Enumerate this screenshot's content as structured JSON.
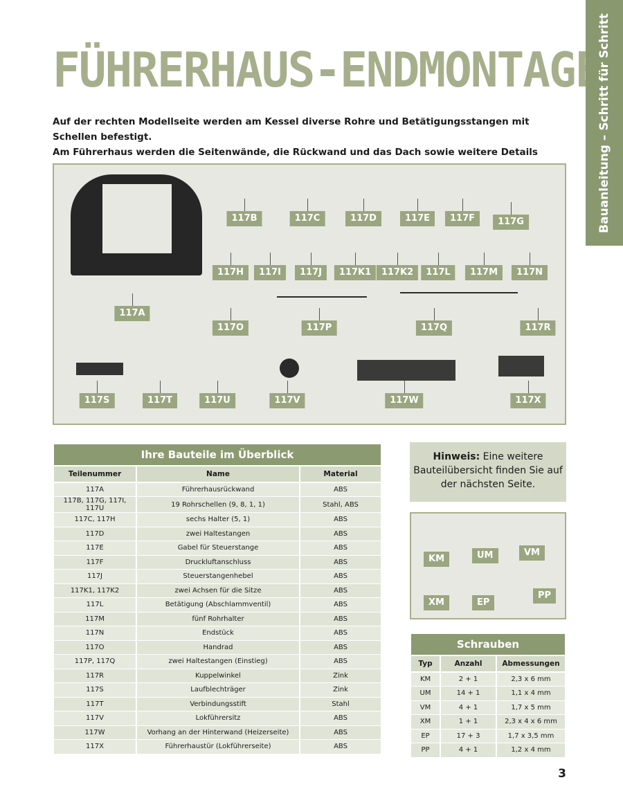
{
  "title": "FÜHRERHAUS-ENDMONTAGE",
  "side_tab": "Bauanleitung – Schritt für Schritt",
  "intro": [
    "Auf der rechten Modellseite werden am Kessel diverse Rohre und Betätigungsstangen mit Schellen befestigt.",
    "Am Führerhaus werden die Seitenwände, die Rückwand und das Dach sowie weitere Details angebracht."
  ],
  "part_labels": [
    "117A",
    "117B",
    "117C",
    "117D",
    "117E",
    "117F",
    "117G",
    "117H",
    "117I",
    "117J",
    "117K1",
    "117K2",
    "117L",
    "117M",
    "117N",
    "117O",
    "117P",
    "117Q",
    "117R",
    "117S",
    "117T",
    "117U",
    "117V",
    "117W",
    "117X"
  ],
  "parts_table": {
    "caption": "Ihre Bauteile im Überblick",
    "headers": [
      "Teilenummer",
      "Name",
      "Material"
    ],
    "rows": [
      [
        "117A",
        "Führerhausrückwand",
        "ABS"
      ],
      [
        "117B, 117G, 117I, 117U",
        "19 Rohrschellen (9, 8, 1, 1)",
        "Stahl, ABS"
      ],
      [
        "117C, 117H",
        "sechs Halter (5, 1)",
        "ABS"
      ],
      [
        "117D",
        "zwei Haltestangen",
        "ABS"
      ],
      [
        "117E",
        "Gabel für Steuerstange",
        "ABS"
      ],
      [
        "117F",
        "Druckluftanschluss",
        "ABS"
      ],
      [
        "117J",
        "Steuerstangenhebel",
        "ABS"
      ],
      [
        "117K1, 117K2",
        "zwei Achsen für die Sitze",
        "ABS"
      ],
      [
        "117L",
        "Betätigung (Abschlammventil)",
        "ABS"
      ],
      [
        "117M",
        "fünf Rohrhalter",
        "ABS"
      ],
      [
        "117N",
        "Endstück",
        "ABS"
      ],
      [
        "117O",
        "Handrad",
        "ABS"
      ],
      [
        "117P, 117Q",
        "zwei Haltestangen (Einstieg)",
        "ABS"
      ],
      [
        "117R",
        "Kuppelwinkel",
        "Zink"
      ],
      [
        "117S",
        "Laufblechträger",
        "Zink"
      ],
      [
        "117T",
        "Verbindungsstift",
        "Stahl"
      ],
      [
        "117V",
        "Lokführersitz",
        "ABS"
      ],
      [
        "117W",
        "Vorhang an der Hinterwand (Heizerseite)",
        "ABS"
      ],
      [
        "117X",
        "Führerhaustür (Lokführerseite)",
        "ABS"
      ]
    ]
  },
  "hint": {
    "bold": "Hinweis:",
    "text": " Eine weitere Bauteilübersicht finden Sie auf der nächsten Seite."
  },
  "screw_labels": [
    "KM",
    "UM",
    "VM",
    "XM",
    "EP",
    "PP"
  ],
  "screws_table": {
    "caption": "Schrauben",
    "headers": [
      "Typ",
      "Anzahl",
      "Abmessungen"
    ],
    "rows": [
      [
        "KM",
        "2 + 1",
        "2,3 x 6 mm"
      ],
      [
        "UM",
        "14 + 1",
        "1,1 x 4 mm"
      ],
      [
        "VM",
        "4 + 1",
        "1,7 x 5 mm"
      ],
      [
        "XM",
        "1 + 1",
        "2,3 x 4 x 6 mm"
      ],
      [
        "EP",
        "17 + 3",
        "1,7 x 3,5 mm"
      ],
      [
        "PP",
        "4 + 1",
        "1,2 x 4 mm"
      ]
    ]
  },
  "page_number": "3",
  "colors": {
    "accent": "#8c9a72",
    "label": "#9aa67f",
    "title": "#a7ae8c"
  }
}
